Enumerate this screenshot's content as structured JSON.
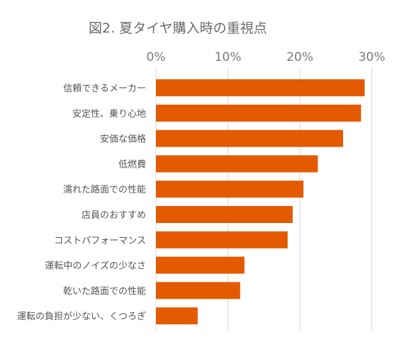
{
  "chart_data": {
    "type": "bar",
    "orientation": "horizontal",
    "title": "図2. 夏タイヤ購入時の重視点",
    "xlabel": "",
    "ylabel": "",
    "xlim": [
      0,
      0.3
    ],
    "x_ticks": [
      "0%",
      "10%",
      "20%",
      "30%"
    ],
    "x_tick_values": [
      0,
      0.1,
      0.2,
      0.3
    ],
    "x_axis_position": "top",
    "grid": true,
    "legend": "none",
    "bar_color": "#E35A00",
    "categories": [
      "信頼できるメーカー",
      "安定性、乗り心地",
      "安価な価格",
      "低燃費",
      "濡れた路面での性能",
      "店員のおすすめ",
      "コストパフォーマンス",
      "運転中のノイズの少なさ",
      "乾いた路面での性能",
      "運転の負担が少ない、くつろぎ"
    ],
    "values": [
      0.29,
      0.285,
      0.26,
      0.225,
      0.205,
      0.19,
      0.183,
      0.123,
      0.117,
      0.058
    ]
  }
}
